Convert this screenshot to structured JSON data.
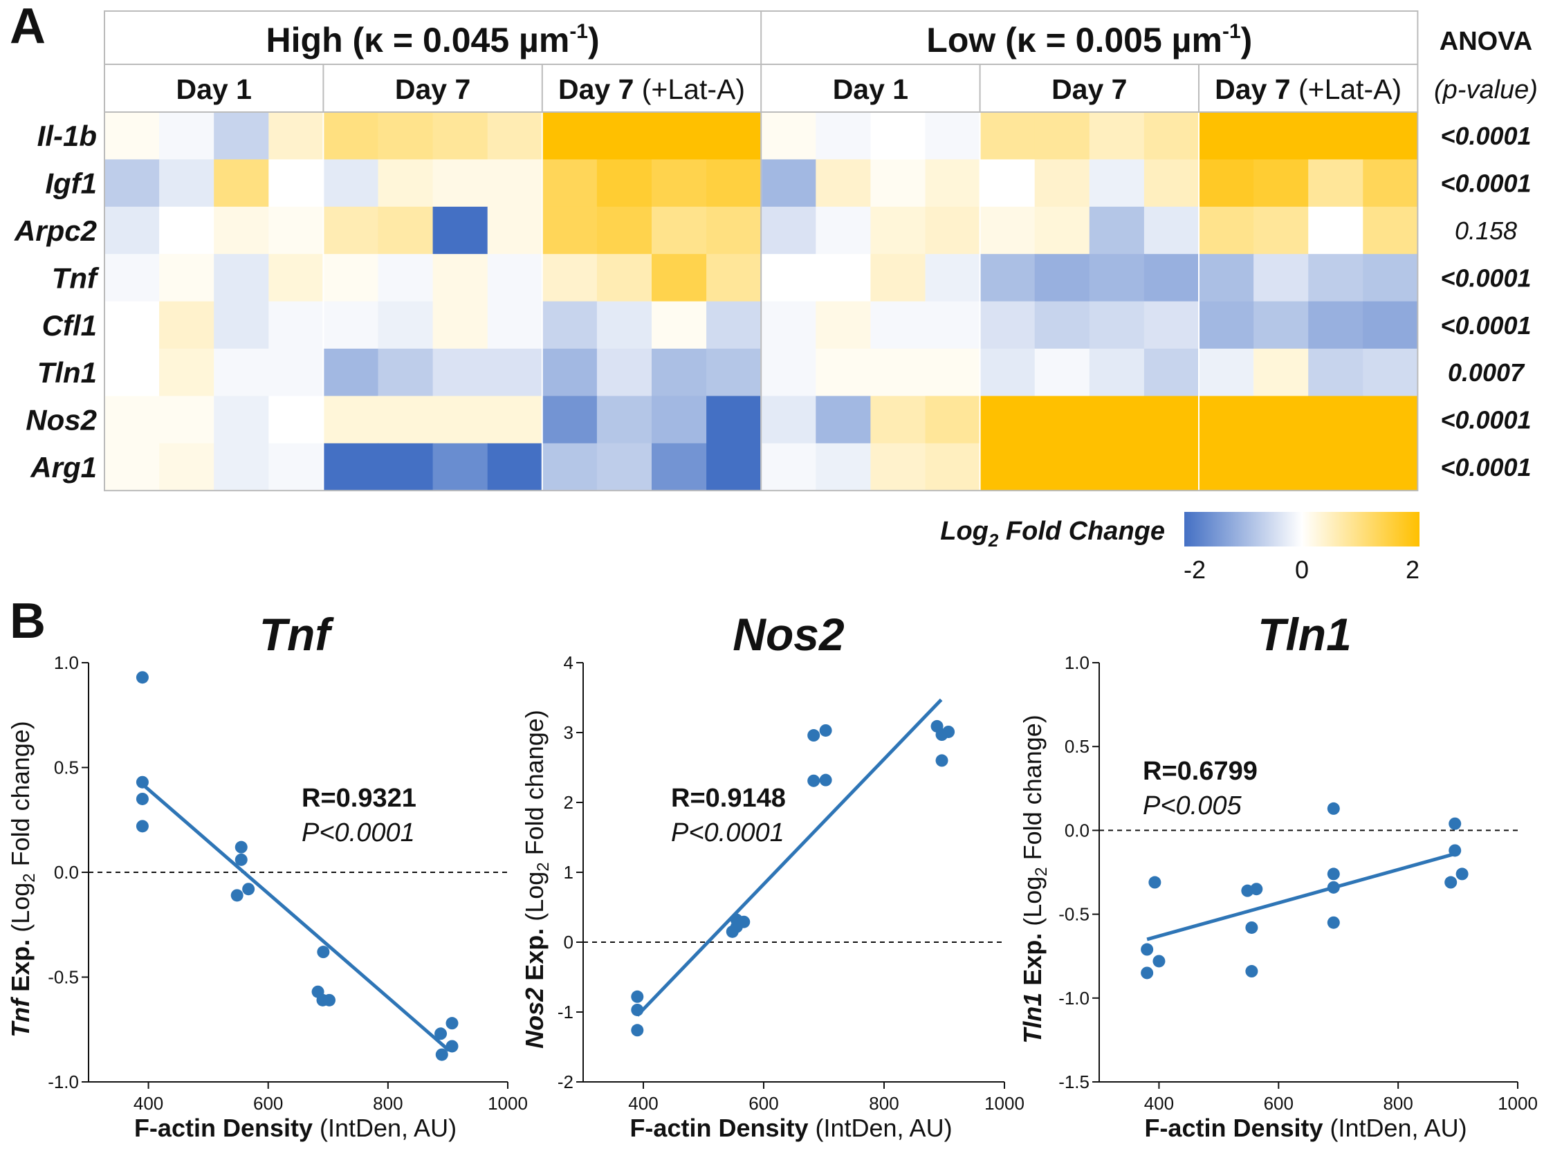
{
  "panel_labels": [
    "A",
    "B"
  ],
  "heatmap": {
    "conditions": [
      {
        "name": "High",
        "kappa_text": "(κ = 0.045 µm",
        "exp": "-1",
        "close": ")"
      },
      {
        "name": "Low",
        "kappa_text": "(κ = 0.005 µm",
        "exp": "-1",
        "close": ")"
      }
    ],
    "groups": [
      {
        "label": "Day 1",
        "suffix": ""
      },
      {
        "label": "Day 7",
        "suffix": ""
      },
      {
        "label": "Day 7",
        "suffix": " (+Lat-A)"
      },
      {
        "label": "Day 1",
        "suffix": ""
      },
      {
        "label": "Day 7",
        "suffix": ""
      },
      {
        "label": "Day 7",
        "suffix": " (+Lat-A)"
      }
    ],
    "anova_title": "ANOVA",
    "anova_subtitle": "(p-value)",
    "genes": [
      "Il-1b",
      "Igf1",
      "Arpc2",
      "Tnf",
      "Cfl1",
      "Tln1",
      "Nos2",
      "Arg1"
    ],
    "p_values": [
      {
        "text": "<0.0001",
        "bold": true
      },
      {
        "text": "<0.0001",
        "bold": true
      },
      {
        "text": "0.158",
        "bold": false
      },
      {
        "text": "<0.0001",
        "bold": true
      },
      {
        "text": "<0.0001",
        "bold": true
      },
      {
        "text": "0.0007",
        "bold": true
      },
      {
        "text": "<0.0001",
        "bold": true
      },
      {
        "text": "<0.0001",
        "bold": true
      }
    ],
    "values": [
      [
        0.1,
        -0.1,
        -0.6,
        0.4,
        1.0,
        0.9,
        0.8,
        0.6,
        2.0,
        2.0,
        2.0,
        2.0,
        0.1,
        -0.1,
        0.0,
        -0.1,
        0.8,
        0.8,
        0.5,
        0.7,
        2.0,
        2.0,
        2.0,
        2.0
      ],
      [
        -0.7,
        -0.3,
        1.0,
        0.0,
        -0.3,
        0.3,
        0.2,
        0.2,
        1.3,
        1.6,
        1.4,
        1.5,
        -1.0,
        0.4,
        0.1,
        0.3,
        0.0,
        0.4,
        -0.2,
        0.5,
        1.7,
        1.6,
        0.8,
        1.3
      ],
      [
        -0.3,
        0.0,
        0.2,
        0.1,
        0.6,
        0.7,
        -2.0,
        0.2,
        1.3,
        1.4,
        0.9,
        1.0,
        -0.4,
        -0.1,
        0.3,
        0.4,
        0.2,
        0.3,
        -0.8,
        -0.3,
        0.9,
        0.8,
        0.0,
        0.9
      ],
      [
        -0.1,
        0.1,
        -0.3,
        0.3,
        0.1,
        -0.1,
        0.2,
        -0.1,
        0.4,
        0.6,
        1.4,
        0.8,
        0.0,
        0.0,
        0.4,
        -0.2,
        -0.9,
        -1.1,
        -1.0,
        -1.1,
        -0.9,
        -0.4,
        -0.7,
        -0.8
      ],
      [
        0.0,
        0.4,
        -0.3,
        -0.1,
        -0.1,
        -0.2,
        0.2,
        -0.1,
        -0.6,
        -0.3,
        0.1,
        -0.5,
        -0.1,
        0.2,
        -0.1,
        -0.1,
        -0.4,
        -0.6,
        -0.5,
        -0.4,
        -1.0,
        -0.8,
        -1.1,
        -1.2
      ],
      [
        0.0,
        0.3,
        -0.1,
        -0.1,
        -1.0,
        -0.7,
        -0.4,
        -0.4,
        -1.0,
        -0.4,
        -0.9,
        -0.8,
        -0.1,
        0.1,
        0.1,
        0.1,
        -0.3,
        -0.1,
        -0.3,
        -0.6,
        -0.2,
        0.3,
        -0.6,
        -0.5
      ],
      [
        0.1,
        0.1,
        -0.2,
        0.0,
        0.3,
        0.3,
        0.3,
        0.3,
        -1.5,
        -0.8,
        -1.0,
        -2.0,
        -0.3,
        -1.0,
        0.6,
        0.8,
        2.0,
        2.0,
        2.0,
        2.0,
        2.0,
        2.0,
        2.0,
        2.0
      ],
      [
        0.1,
        0.2,
        -0.2,
        -0.1,
        -2.0,
        -2.0,
        -1.6,
        -2.0,
        -0.8,
        -0.7,
        -1.5,
        -2.0,
        -0.1,
        -0.2,
        0.4,
        0.5,
        2.0,
        2.0,
        2.0,
        2.0,
        2.0,
        2.0,
        2.0,
        2.0
      ]
    ],
    "colorbar": {
      "title": "Log",
      "sub": "2",
      "rest": " Fold Change",
      "ticks": [
        "-2",
        "0",
        "2"
      ]
    },
    "colors": {
      "low": "#4470c4",
      "mid": "#ffffff",
      "high": "#ffc000"
    }
  },
  "chart_data": [
    {
      "type": "scatter",
      "title": "Tnf",
      "ylabel": {
        "gene": "Tnf",
        "text": " Exp. (Log",
        "sub": "2",
        "end": " Fold change)"
      },
      "xlabel": {
        "bold": "F-actin Density",
        "rest": " (IntDen, AU)"
      },
      "xlim": [
        300,
        1000
      ],
      "ylim": [
        -1.0,
        1.0
      ],
      "xticks": [
        400,
        600,
        800,
        1000
      ],
      "yticks": [
        -1.0,
        -0.5,
        0.0,
        0.5,
        1.0
      ],
      "ytick_labels": [
        "-1.0",
        "-0.5",
        "0.0",
        "0.5",
        "1.0"
      ],
      "points": [
        [
          390,
          0.93
        ],
        [
          390,
          0.43
        ],
        [
          390,
          0.35
        ],
        [
          390,
          0.22
        ],
        [
          555,
          0.12
        ],
        [
          555,
          0.06
        ],
        [
          548,
          -0.11
        ],
        [
          567,
          -0.08
        ],
        [
          692,
          -0.38
        ],
        [
          683,
          -0.57
        ],
        [
          691,
          -0.61
        ],
        [
          702,
          -0.61
        ],
        [
          888,
          -0.77
        ],
        [
          890,
          -0.87
        ],
        [
          907,
          -0.72
        ],
        [
          907,
          -0.83
        ]
      ],
      "fit": {
        "x": [
          390,
          902
        ],
        "y": [
          0.42,
          -0.85
        ]
      },
      "stats": {
        "r": "R=0.9321",
        "p": "P<0.0001"
      }
    },
    {
      "type": "scatter",
      "title": "Nos2",
      "ylabel": {
        "gene": "Nos2",
        "text": " Exp. (Log",
        "sub": "2",
        "end": " Fold change)"
      },
      "xlabel": {
        "bold": "F-actin Density",
        "rest": " (IntDen, AU)"
      },
      "xlim": [
        300,
        1000
      ],
      "ylim": [
        -2,
        4
      ],
      "xticks": [
        400,
        600,
        800,
        1000
      ],
      "yticks": [
        -2,
        -1,
        0,
        1,
        2,
        3,
        4
      ],
      "ytick_labels": [
        "-2",
        "-1",
        "0",
        "1",
        "2",
        "3",
        "4"
      ],
      "points": [
        [
          390,
          -0.78
        ],
        [
          390,
          -0.97
        ],
        [
          390,
          -1.26
        ],
        [
          548,
          0.15
        ],
        [
          555,
          0.32
        ],
        [
          567,
          0.29
        ],
        [
          555,
          0.22
        ],
        [
          683,
          2.96
        ],
        [
          703,
          3.03
        ],
        [
          683,
          2.31
        ],
        [
          703,
          2.32
        ],
        [
          888,
          3.09
        ],
        [
          896,
          2.97
        ],
        [
          907,
          3.01
        ],
        [
          896,
          2.6
        ]
      ],
      "fit": {
        "x": [
          390,
          895
        ],
        "y": [
          -1.05,
          3.47
        ]
      },
      "stats": {
        "r": "R=0.9148",
        "p": "P<0.0001"
      }
    },
    {
      "type": "scatter",
      "title": "Tln1",
      "ylabel": {
        "gene": "Tln1",
        "text": " Exp. (Log",
        "sub": "2",
        "end": " Fold change)"
      },
      "xlabel": {
        "bold": "F-actin Density",
        "rest": " (IntDen, AU)"
      },
      "xlim": [
        300,
        1000
      ],
      "ylim": [
        -1.5,
        1.0
      ],
      "xticks": [
        400,
        600,
        800,
        1000
      ],
      "yticks": [
        -1.5,
        -1.0,
        -0.5,
        0.0,
        0.5,
        1.0
      ],
      "ytick_labels": [
        "-1.5",
        "-1.0",
        "-0.5",
        "0.0",
        "0.5",
        "1.0"
      ],
      "points": [
        [
          393,
          -0.31
        ],
        [
          380,
          -0.71
        ],
        [
          380,
          -0.85
        ],
        [
          400,
          -0.78
        ],
        [
          548,
          -0.36
        ],
        [
          563,
          -0.35
        ],
        [
          555,
          -0.58
        ],
        [
          555,
          -0.84
        ],
        [
          692,
          0.13
        ],
        [
          692,
          -0.26
        ],
        [
          692,
          -0.34
        ],
        [
          692,
          -0.55
        ],
        [
          895,
          0.04
        ],
        [
          895,
          -0.12
        ],
        [
          888,
          -0.31
        ],
        [
          907,
          -0.26
        ]
      ],
      "fit": {
        "x": [
          380,
          895
        ],
        "y": [
          -0.65,
          -0.14
        ]
      },
      "stats": {
        "r": "R=0.6799",
        "p": "P<0.005"
      }
    }
  ]
}
